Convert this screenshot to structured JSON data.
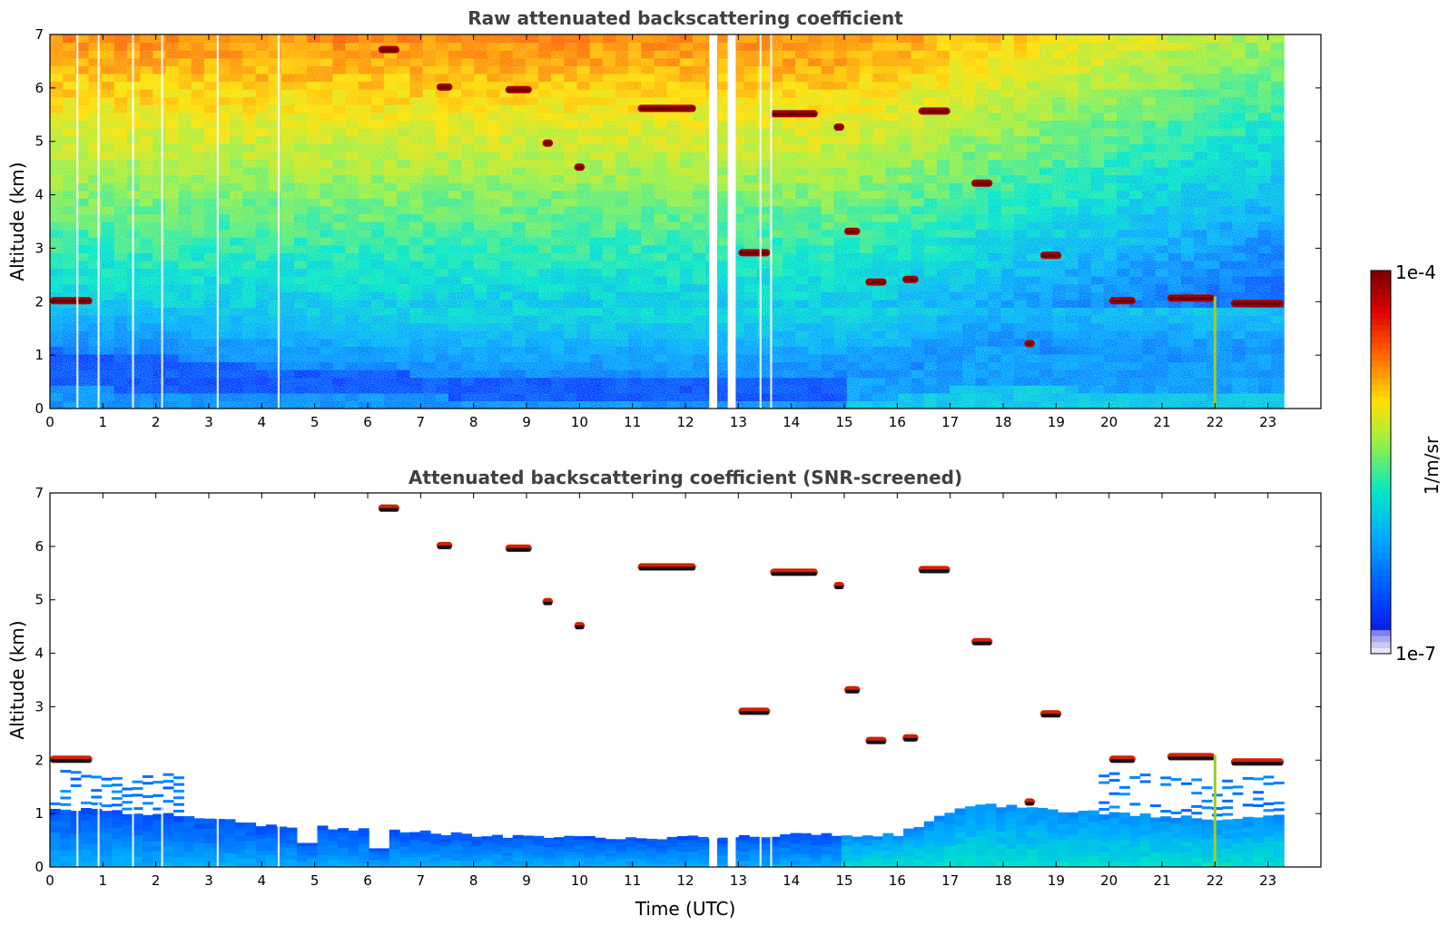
{
  "chart_data": [
    {
      "type": "heatmap",
      "title": "Raw attenuated backscattering coefficient",
      "xlabel": "",
      "ylabel": "Altitude (km)",
      "x_ticks": [
        "0",
        "1",
        "2",
        "3",
        "4",
        "5",
        "6",
        "7",
        "8",
        "9",
        "10",
        "11",
        "12",
        "13",
        "14",
        "15",
        "16",
        "17",
        "18",
        "19",
        "20",
        "21",
        "22",
        "23"
      ],
      "y_ticks": [
        "0",
        "1",
        "2",
        "3",
        "4",
        "5",
        "6",
        "7"
      ],
      "xlim": [
        0,
        24
      ],
      "ylim": [
        0,
        7
      ],
      "data_xrange": [
        0,
        23.3
      ],
      "screened": false,
      "data_gaps_utc": [
        [
          12.45,
          12.6
        ],
        [
          12.8,
          12.95
        ]
      ],
      "features": {
        "boundary_layer_top_km": [
          [
            0,
            1.1
          ],
          [
            2,
            1.0
          ],
          [
            4,
            0.8
          ],
          [
            6,
            0.7
          ],
          [
            8,
            0.6
          ],
          [
            10,
            0.55
          ],
          [
            12,
            0.55
          ],
          [
            14,
            0.6
          ],
          [
            16,
            0.6
          ],
          [
            17.5,
            1.2
          ],
          [
            18.5,
            1.1
          ],
          [
            20,
            1.0
          ],
          [
            22,
            0.9
          ],
          [
            23.3,
            1.0
          ]
        ],
        "cloud_layers": [
          {
            "start_utc": 0.0,
            "end_utc": 0.8,
            "altitude_km": 2.0
          },
          {
            "start_utc": 6.2,
            "end_utc": 6.6,
            "altitude_km": 6.7
          },
          {
            "start_utc": 7.3,
            "end_utc": 7.6,
            "altitude_km": 6.0
          },
          {
            "start_utc": 8.6,
            "end_utc": 9.1,
            "altitude_km": 5.95
          },
          {
            "start_utc": 9.3,
            "end_utc": 9.5,
            "altitude_km": 4.95
          },
          {
            "start_utc": 9.9,
            "end_utc": 10.1,
            "altitude_km": 4.5
          },
          {
            "start_utc": 11.1,
            "end_utc": 12.2,
            "altitude_km": 5.6
          },
          {
            "start_utc": 13.6,
            "end_utc": 14.5,
            "altitude_km": 5.5
          },
          {
            "start_utc": 14.8,
            "end_utc": 15.0,
            "altitude_km": 5.25
          },
          {
            "start_utc": 16.4,
            "end_utc": 17.0,
            "altitude_km": 5.55
          },
          {
            "start_utc": 13.0,
            "end_utc": 13.6,
            "altitude_km": 2.9
          },
          {
            "start_utc": 15.4,
            "end_utc": 15.8,
            "altitude_km": 2.35
          },
          {
            "start_utc": 16.1,
            "end_utc": 16.4,
            "altitude_km": 2.4
          },
          {
            "start_utc": 15.0,
            "end_utc": 15.3,
            "altitude_km": 3.3
          },
          {
            "start_utc": 17.4,
            "end_utc": 17.8,
            "altitude_km": 4.2
          },
          {
            "start_utc": 18.7,
            "end_utc": 19.1,
            "altitude_km": 2.85
          },
          {
            "start_utc": 18.4,
            "end_utc": 18.6,
            "altitude_km": 1.2
          },
          {
            "start_utc": 20.0,
            "end_utc": 20.5,
            "altitude_km": 2.0
          },
          {
            "start_utc": 21.1,
            "end_utc": 22.0,
            "altitude_km": 2.05
          },
          {
            "start_utc": 22.3,
            "end_utc": 23.3,
            "altitude_km": 1.95
          }
        ]
      }
    },
    {
      "type": "heatmap",
      "title": "Attenuated backscattering coefficient (SNR-screened)",
      "xlabel": "Time (UTC)",
      "ylabel": "Altitude (km)",
      "x_ticks": [
        "0",
        "1",
        "2",
        "3",
        "4",
        "5",
        "6",
        "7",
        "8",
        "9",
        "10",
        "11",
        "12",
        "13",
        "14",
        "15",
        "16",
        "17",
        "18",
        "19",
        "20",
        "21",
        "22",
        "23"
      ],
      "y_ticks": [
        "0",
        "1",
        "2",
        "3",
        "4",
        "5",
        "6",
        "7"
      ],
      "xlim": [
        0,
        24
      ],
      "ylim": [
        0,
        7
      ],
      "data_xrange": [
        0,
        23.3
      ],
      "screened": true,
      "data_gaps_utc": [
        [
          12.45,
          12.6
        ],
        [
          12.8,
          12.95
        ]
      ]
    }
  ],
  "colorbar": {
    "label": "1/m/sr",
    "min_label": "1e-7",
    "max_label": "1e-4",
    "colormap": "jet",
    "colors": [
      "#e8e8f8",
      "#0000ff",
      "#00b0ff",
      "#00e8c0",
      "#c0f040",
      "#ffd000",
      "#ff4000",
      "#8b0000"
    ]
  }
}
